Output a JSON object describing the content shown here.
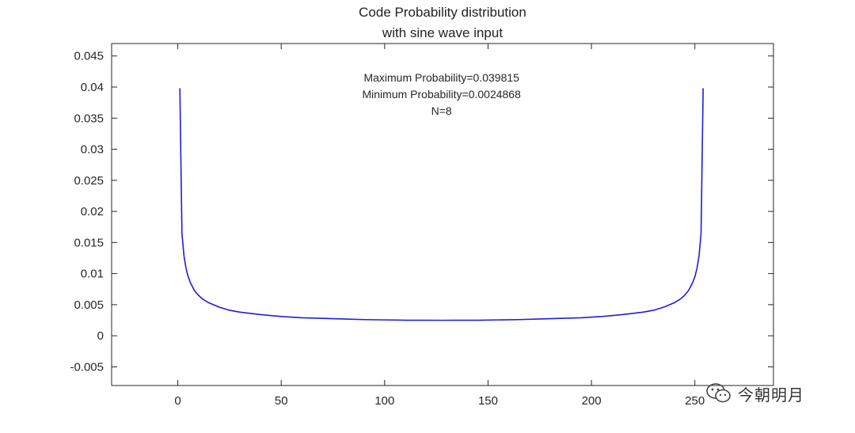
{
  "chart_data": {
    "type": "line",
    "title": [
      "Code Probability distribution",
      "with sine wave input"
    ],
    "annotations": [
      "Maximum Probability=0.039815",
      "Minimum Probability=0.0024868",
      "N=8"
    ],
    "xlim": [
      -32,
      288
    ],
    "ylim": [
      -0.008,
      0.047
    ],
    "xticks": [
      0,
      50,
      100,
      150,
      200,
      250
    ],
    "xtick_labels": [
      "0",
      "50",
      "100",
      "150",
      "200",
      "250"
    ],
    "yticks": [
      -0.005,
      0,
      0.005,
      0.01,
      0.015,
      0.02,
      0.025,
      0.03,
      0.035,
      0.04,
      0.045
    ],
    "ytick_labels": [
      "-0.005",
      "0",
      "0.005",
      "0.01",
      "0.015",
      "0.02",
      "0.025",
      "0.03",
      "0.035",
      "0.04",
      "0.045"
    ],
    "grid": false,
    "series": [
      {
        "color": "#1f1fd6",
        "x": [
          1,
          2,
          3,
          4,
          5,
          6,
          8,
          10,
          12,
          15,
          20,
          25,
          30,
          40,
          50,
          60,
          70,
          80,
          90,
          100,
          110,
          120,
          127.5,
          135,
          145,
          155,
          165,
          175,
          185,
          195,
          205,
          215,
          225,
          230,
          235,
          240,
          243,
          245,
          247,
          249,
          250,
          251,
          252,
          253,
          254
        ],
        "y": [
          0.039815,
          0.0165,
          0.0128,
          0.0108,
          0.0095,
          0.0086,
          0.0073,
          0.0065,
          0.0059,
          0.0053,
          0.0046,
          0.0041,
          0.0038,
          0.0034,
          0.0031,
          0.0029,
          0.0028,
          0.0027,
          0.0026,
          0.00255,
          0.0025,
          0.00249,
          0.0024868,
          0.00249,
          0.0025,
          0.00255,
          0.0026,
          0.0027,
          0.0028,
          0.0029,
          0.0031,
          0.0034,
          0.0038,
          0.0041,
          0.0046,
          0.0053,
          0.0059,
          0.0065,
          0.0073,
          0.0086,
          0.0095,
          0.0108,
          0.0128,
          0.0165,
          0.039815
        ]
      }
    ]
  },
  "watermark": {
    "text": "今朝明月",
    "icon": "wechat-icon"
  }
}
